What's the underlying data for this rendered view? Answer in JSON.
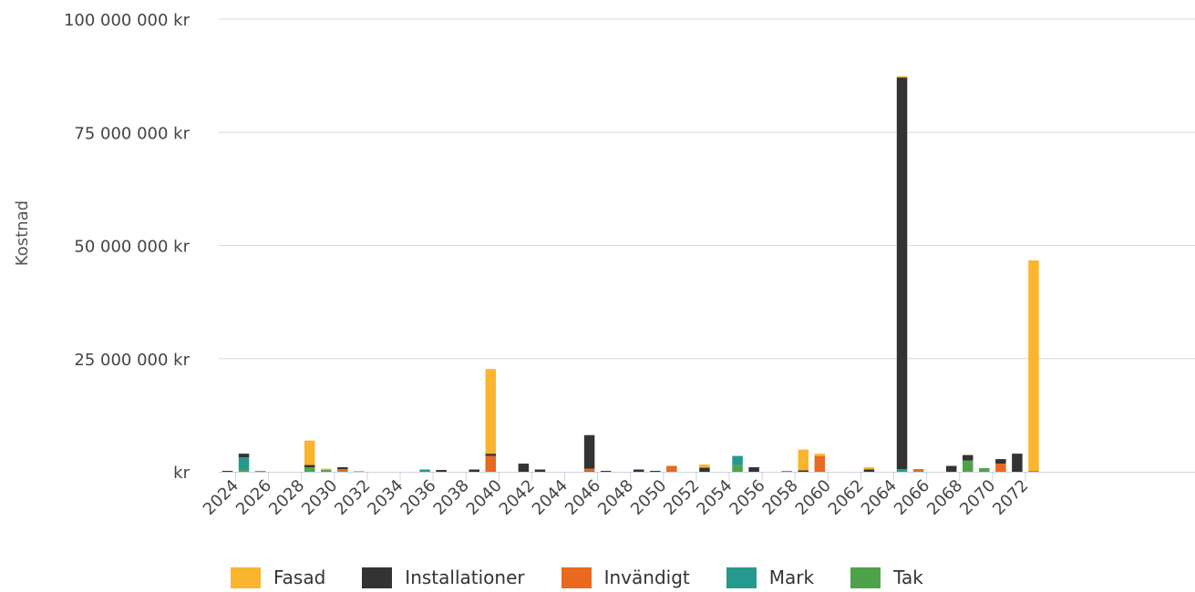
{
  "chart_data": {
    "type": "bar",
    "stacked": true,
    "ylabel": "Kostnad",
    "xlabel": "",
    "ylim": [
      0,
      100000000
    ],
    "yticks": [
      {
        "value": 0,
        "label": "kr"
      },
      {
        "value": 25000000,
        "label": "25 000 000 kr"
      },
      {
        "value": 50000000,
        "label": "50 000 000 kr"
      },
      {
        "value": 75000000,
        "label": "75 000 000 kr"
      },
      {
        "value": 100000000,
        "label": "100 000 000 kr"
      }
    ],
    "grid": true,
    "legend_position": "bottom",
    "categories": [
      2024,
      2025,
      2026,
      2027,
      2028,
      2029,
      2030,
      2031,
      2032,
      2033,
      2034,
      2035,
      2036,
      2037,
      2038,
      2039,
      2040,
      2041,
      2042,
      2043,
      2044,
      2045,
      2046,
      2047,
      2048,
      2049,
      2050,
      2051,
      2052,
      2053,
      2054,
      2055,
      2056,
      2057,
      2058,
      2059,
      2060,
      2061,
      2062,
      2063,
      2064,
      2065,
      2066,
      2067,
      2068,
      2069,
      2070,
      2071,
      2072,
      2073
    ],
    "xtick_labels": [
      "2024",
      "2026",
      "2028",
      "2030",
      "2032",
      "2034",
      "2036",
      "2038",
      "2040",
      "2042",
      "2044",
      "2046",
      "2048",
      "2050",
      "2052",
      "2054",
      "2056",
      "2058",
      "2060",
      "2062",
      "2064",
      "2066",
      "2068",
      "2070",
      "2072"
    ],
    "series": [
      {
        "name": "Tak",
        "color": "#4ea34a",
        "values": [
          0,
          500000,
          0,
          0,
          0,
          1000000,
          400000,
          0,
          0,
          0,
          0,
          0,
          0,
          0,
          0,
          0,
          0,
          0,
          0,
          0,
          0,
          0,
          0,
          0,
          0,
          0,
          0,
          0,
          0,
          0,
          0,
          1500000,
          0,
          0,
          0,
          0,
          0,
          0,
          0,
          0,
          0,
          0,
          0,
          0,
          0,
          2500000,
          800000,
          0,
          0,
          0
        ]
      },
      {
        "name": "Mark",
        "color": "#26998f",
        "values": [
          0,
          2700000,
          0,
          0,
          0,
          0,
          0,
          0,
          0,
          0,
          0,
          0,
          500000,
          0,
          0,
          0,
          0,
          0,
          0,
          0,
          0,
          0,
          200000,
          0,
          0,
          0,
          0,
          0,
          0,
          0,
          0,
          2000000,
          0,
          0,
          0,
          0,
          0,
          0,
          0,
          0,
          0,
          600000,
          0,
          0,
          0,
          0,
          0,
          0,
          0,
          0
        ]
      },
      {
        "name": "Invändigt",
        "color": "#e8691f",
        "values": [
          0,
          0,
          200000,
          0,
          0,
          0,
          0,
          600000,
          0,
          0,
          0,
          0,
          0,
          0,
          0,
          0,
          3500000,
          0,
          0,
          0,
          0,
          0,
          500000,
          0,
          0,
          0,
          0,
          1300000,
          0,
          0,
          0,
          0,
          0,
          0,
          200000,
          0,
          3500000,
          0,
          0,
          0,
          0,
          0,
          600000,
          0,
          0,
          0,
          0,
          1800000,
          0,
          200000
        ]
      },
      {
        "name": "Installationer",
        "color": "#333333",
        "values": [
          200000,
          800000,
          0,
          0,
          0,
          500000,
          0,
          400000,
          0,
          0,
          0,
          0,
          0,
          400000,
          0,
          500000,
          500000,
          0,
          1800000,
          500000,
          0,
          0,
          7400000,
          200000,
          0,
          500000,
          200000,
          0,
          0,
          900000,
          0,
          0,
          1000000,
          0,
          0,
          300000,
          0,
          0,
          0,
          500000,
          0,
          86500000,
          0,
          0,
          1300000,
          1200000,
          0,
          1000000,
          4000000,
          0
        ]
      },
      {
        "name": "Fasad",
        "color": "#fbb42e",
        "values": [
          0,
          0,
          0,
          0,
          0,
          5400000,
          300000,
          0,
          200000,
          0,
          0,
          0,
          0,
          0,
          0,
          0,
          18700000,
          0,
          0,
          0,
          0,
          0,
          0,
          0,
          0,
          0,
          0,
          0,
          0,
          700000,
          0,
          0,
          0,
          0,
          0,
          4600000,
          500000,
          0,
          0,
          500000,
          0,
          300000,
          0,
          0,
          0,
          0,
          0,
          0,
          0,
          46500000
        ]
      }
    ],
    "legend_order": [
      "Fasad",
      "Installationer",
      "Invändigt",
      "Mark",
      "Tak"
    ]
  }
}
